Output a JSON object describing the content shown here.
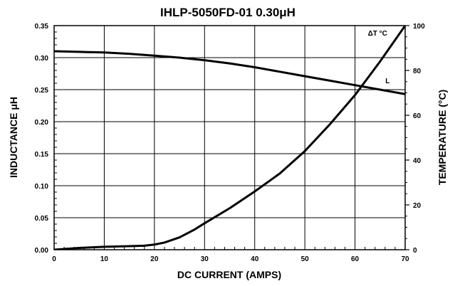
{
  "chart_data": {
    "type": "line",
    "title": "IHLP-5050FD-01 0.30μH",
    "xlabel": "DC CURRENT (AMPS)",
    "ylabel_left": "INDUCTANCE μH",
    "ylabel_right": "TEMPERATURE (°C)",
    "xlim": [
      0,
      70
    ],
    "ylim_left": [
      0,
      0.35
    ],
    "ylim_right": [
      0,
      100
    ],
    "x_ticks": [
      0,
      10,
      20,
      30,
      40,
      50,
      60,
      70
    ],
    "y_left_ticks": [
      "0.00",
      "0.05",
      "0.10",
      "0.15",
      "0.20",
      "0.25",
      "0.30",
      "0.35"
    ],
    "y_right_ticks": [
      "0",
      "20",
      "40",
      "60",
      "80",
      "100"
    ],
    "grid": true,
    "series": [
      {
        "name": "L",
        "axis": "left",
        "x": [
          0,
          5,
          10,
          15,
          20,
          25,
          30,
          35,
          40,
          45,
          50,
          55,
          60,
          65,
          70
        ],
        "values": [
          0.31,
          0.309,
          0.308,
          0.306,
          0.303,
          0.3,
          0.296,
          0.291,
          0.285,
          0.278,
          0.271,
          0.264,
          0.257,
          0.25,
          0.243
        ]
      },
      {
        "name": "ΔT °C",
        "axis": "right",
        "x": [
          0,
          5,
          10,
          15,
          18,
          20,
          22,
          25,
          28,
          30,
          35,
          40,
          45,
          50,
          55,
          60,
          65,
          70
        ],
        "values": [
          0,
          0.8,
          1.3,
          1.6,
          1.8,
          2.3,
          3.2,
          5.5,
          9,
          11.8,
          18.5,
          26,
          34,
          44,
          56,
          69,
          84,
          100
        ]
      }
    ],
    "annotations": [
      {
        "text": "ΔT °C",
        "x": 64.5,
        "y_right": 95.5
      },
      {
        "text": "L",
        "x": 66.5,
        "y_left": 0.26
      }
    ]
  }
}
